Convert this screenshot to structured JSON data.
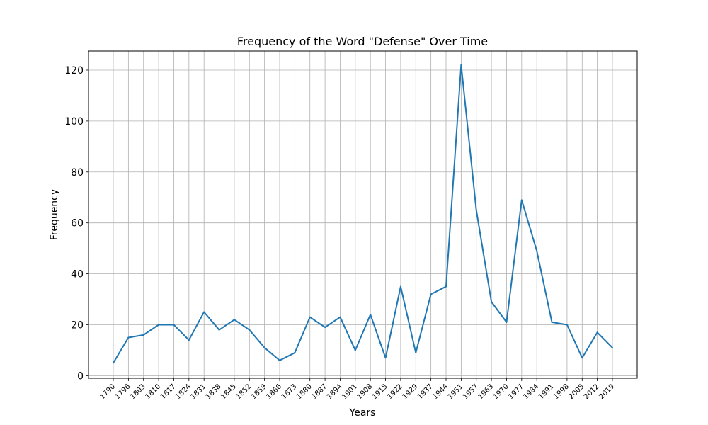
{
  "chart_data": {
    "type": "line",
    "title": "Frequency of the Word \"Defense\" Over Time",
    "xlabel": "Years",
    "ylabel": "Frequency",
    "ylim": [
      -1,
      127.5
    ],
    "yticks": [
      0,
      20,
      40,
      60,
      80,
      100,
      120
    ],
    "grid": true,
    "line_color": "#1f77b4",
    "grid_color": "#b0b0b0",
    "categories": [
      "1790",
      "1796",
      "1803",
      "1810",
      "1817",
      "1824",
      "1831",
      "1838",
      "1845",
      "1852",
      "1859",
      "1866",
      "1873",
      "1880",
      "1887",
      "1894",
      "1901",
      "1908",
      "1915",
      "1922",
      "1929",
      "1937",
      "1944",
      "1951",
      "1957",
      "1963",
      "1970",
      "1977",
      "1984",
      "1991",
      "1998",
      "2005",
      "2012",
      "2019"
    ],
    "series": [
      {
        "values": [
          5,
          15,
          16,
          20,
          20,
          14,
          25,
          18,
          22,
          18,
          11,
          6,
          9,
          23,
          19,
          23,
          10,
          24,
          7,
          35,
          9,
          32,
          35,
          122,
          65,
          29,
          21,
          69,
          49,
          21,
          20,
          7,
          17,
          11
        ]
      }
    ]
  }
}
